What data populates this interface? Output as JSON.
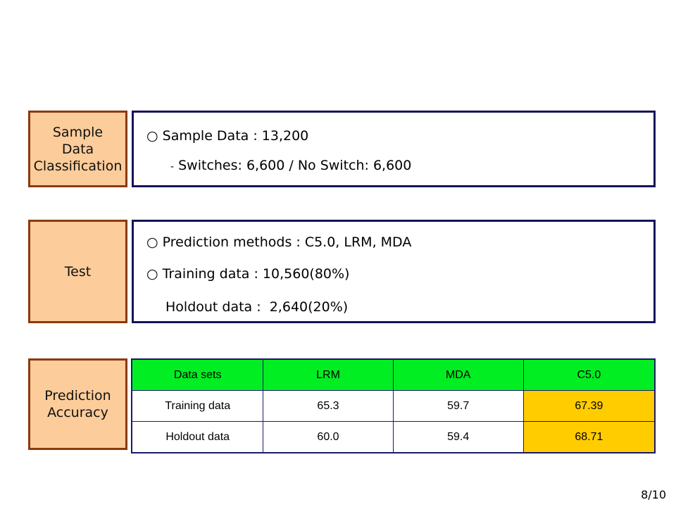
{
  "sections": {
    "sample": {
      "label": [
        "Sample",
        "Data",
        "Classification"
      ],
      "bullet": "○",
      "line1": "Sample Data : 13,200",
      "sub_dash": "-",
      "line2": "Switches: 6,600 / No Switch: 6,600"
    },
    "test": {
      "label": "Test",
      "bullet": "○",
      "line1": "Prediction methods : C5.0, LRM, MDA",
      "line2": "Training data : 10,560(80%)",
      "line3": "Holdout data :  2,640(20%)"
    },
    "accuracy": {
      "label": [
        "Prediction",
        "Accuracy"
      ],
      "table": {
        "headers": [
          "Data sets",
          "LRM",
          "MDA",
          "C5.0"
        ],
        "rows": [
          [
            "Training data",
            "65.3",
            "59.7",
            "67.39"
          ],
          [
            "Holdout data",
            "60.0",
            "59.4",
            "68.71"
          ]
        ]
      }
    }
  },
  "colors": {
    "label_fill": "#fccc9a",
    "label_border": "#8a3a10",
    "content_border": "#14145a",
    "header_fill": "#00ee22",
    "highlight_fill": "#ffcc00"
  },
  "page_number": "8/10"
}
